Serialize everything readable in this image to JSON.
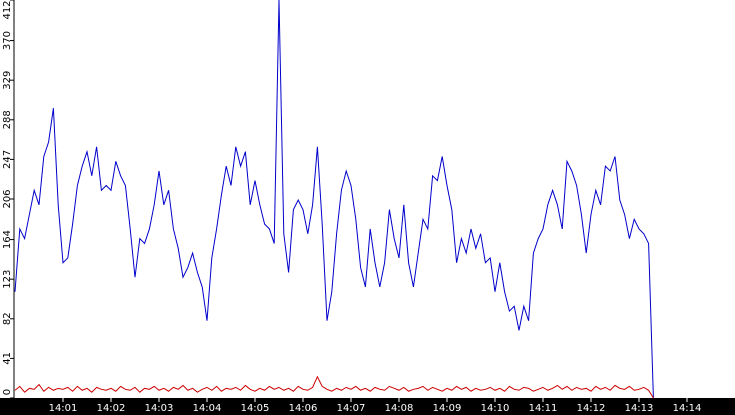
{
  "chart_data": {
    "type": "line",
    "x": [
      840,
      840.1,
      840.2,
      840.3,
      840.4,
      840.5,
      840.6,
      840.7,
      840.8,
      840.9,
      841,
      841.1,
      841.2,
      841.3,
      841.4,
      841.5,
      841.6,
      841.7,
      841.8,
      841.9,
      842,
      842.1,
      842.2,
      842.3,
      842.4,
      842.5,
      842.6,
      842.7,
      842.8,
      842.9,
      843,
      843.1,
      843.2,
      843.3,
      843.4,
      843.5,
      843.6,
      843.7,
      843.8,
      843.9,
      844,
      844.1,
      844.2,
      844.3,
      844.4,
      844.5,
      844.6,
      844.7,
      844.8,
      844.9,
      845,
      845.1,
      845.2,
      845.3,
      845.4,
      845.5,
      845.6,
      845.7,
      845.8,
      845.9,
      846,
      846.1,
      846.2,
      846.3,
      846.4,
      846.5,
      846.6,
      846.7,
      846.8,
      846.9,
      847,
      847.1,
      847.2,
      847.3,
      847.4,
      847.5,
      847.6,
      847.7,
      847.8,
      847.9,
      848,
      848.1,
      848.2,
      848.3,
      848.4,
      848.5,
      848.6,
      848.7,
      848.8,
      848.9,
      849,
      849.1,
      849.2,
      849.3,
      849.4,
      849.5,
      849.6,
      849.7,
      849.8,
      849.9,
      850,
      850.1,
      850.2,
      850.3,
      850.4,
      850.5,
      850.6,
      850.7,
      850.8,
      850.9,
      851,
      851.1,
      851.2,
      851.3,
      851.4,
      851.5,
      851.6,
      851.7,
      851.8,
      851.9,
      852,
      852.1,
      852.2,
      852.3,
      852.4,
      852.5,
      852.6,
      852.7,
      852.8,
      852.9,
      853,
      853.1,
      853.2,
      853.3
    ],
    "series": [
      {
        "color": "#0000cc",
        "values": [
          110,
          175,
          165,
          190,
          215,
          200,
          250,
          265,
          300,
          200,
          140,
          145,
          180,
          220,
          240,
          255,
          230,
          260,
          215,
          220,
          215,
          245,
          230,
          220,
          175,
          125,
          165,
          160,
          175,
          200,
          235,
          200,
          215,
          175,
          155,
          125,
          135,
          150,
          130,
          115,
          80,
          145,
          175,
          210,
          240,
          220,
          260,
          240,
          255,
          200,
          225,
          200,
          180,
          175,
          160,
          412,
          170,
          130,
          195,
          205,
          195,
          170,
          200,
          260,
          180,
          80,
          110,
          170,
          215,
          235,
          220,
          185,
          135,
          115,
          175,
          140,
          115,
          140,
          195,
          165,
          145,
          200,
          140,
          115,
          150,
          185,
          175,
          230,
          225,
          250,
          220,
          195,
          140,
          165,
          150,
          175,
          155,
          170,
          140,
          145,
          110,
          140,
          110,
          90,
          95,
          70,
          95,
          80,
          150,
          165,
          175,
          200,
          215,
          200,
          175,
          245,
          235,
          220,
          190,
          150,
          190,
          215,
          200,
          240,
          235,
          250,
          205,
          190,
          165,
          185,
          175,
          170,
          160,
          0
        ]
      },
      {
        "color": "#cc0000",
        "values": [
          8,
          12,
          6,
          10,
          9,
          14,
          7,
          11,
          8,
          10,
          9,
          11,
          7,
          12,
          8,
          10,
          6,
          11,
          9,
          8,
          10,
          7,
          12,
          9,
          8,
          11,
          6,
          10,
          9,
          12,
          8,
          10,
          7,
          11,
          9,
          13,
          8,
          10,
          6,
          9,
          11,
          8,
          12,
          7,
          10,
          9,
          11,
          8,
          13,
          9,
          7,
          10,
          8,
          12,
          9,
          11,
          8,
          10,
          7,
          12,
          9,
          8,
          11,
          22,
          12,
          9,
          7,
          10,
          8,
          11,
          9,
          12,
          8,
          10,
          7,
          11,
          9,
          8,
          12,
          10,
          8,
          11,
          7,
          9,
          10,
          12,
          8,
          11,
          9,
          7,
          10,
          8,
          12,
          9,
          11,
          7,
          10,
          8,
          9,
          11,
          8,
          10,
          7,
          12,
          9,
          8,
          11,
          10,
          7,
          9,
          11,
          8,
          10,
          13,
          9,
          12,
          8,
          11,
          9,
          10,
          7,
          12,
          9,
          11,
          8,
          13,
          10,
          9,
          12,
          8,
          9,
          11,
          8,
          0
        ]
      }
    ],
    "xlim": [
      840,
      855
    ],
    "ylim": [
      0,
      412
    ],
    "yticks": [
      0,
      41,
      82,
      123,
      164,
      206,
      247,
      288,
      329,
      370,
      412
    ],
    "xticks": [
      {
        "value": 841,
        "label": "14:01"
      },
      {
        "value": 842,
        "label": "14:02"
      },
      {
        "value": 843,
        "label": "14:03"
      },
      {
        "value": 844,
        "label": "14:04"
      },
      {
        "value": 845,
        "label": "14:05"
      },
      {
        "value": 846,
        "label": "14:06"
      },
      {
        "value": 847,
        "label": "14:07"
      },
      {
        "value": 848,
        "label": "14:08"
      },
      {
        "value": 849,
        "label": "14:09"
      },
      {
        "value": 850,
        "label": "14:10"
      },
      {
        "value": 851,
        "label": "14:11"
      },
      {
        "value": 852,
        "label": "14:12"
      },
      {
        "value": 853,
        "label": "14:13"
      },
      {
        "value": 854,
        "label": "14:14"
      }
    ]
  }
}
